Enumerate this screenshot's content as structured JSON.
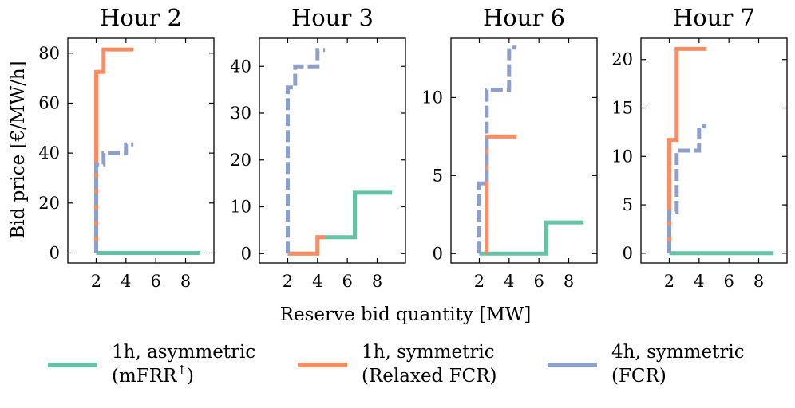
{
  "chart_data": {
    "type": "line",
    "xlabel": "Reserve bid quantity [MW]",
    "ylabel": "Bid price [€/MW/h]",
    "colors": {
      "asym": "#66c2a5",
      "relaxed": "#fc8d62",
      "fcr": "#8da0cb"
    },
    "legend": [
      {
        "key": "asym",
        "line1": "1h, asymmetric",
        "line2": "(mFRR",
        "sup": "↑",
        "close": ")"
      },
      {
        "key": "relaxed",
        "line1": "1h, symmetric",
        "line2": "(Relaxed FCR)"
      },
      {
        "key": "fcr",
        "line1": "4h, symmetric",
        "line2": "(FCR)"
      }
    ],
    "panels": [
      {
        "title": "Hour 2",
        "xlim": [
          0.1,
          9.9
        ],
        "ylim": [
          -4,
          86
        ],
        "xticks": [
          2,
          4,
          6,
          8
        ],
        "yticks": [
          0,
          20,
          40,
          60,
          80
        ],
        "series": [
          {
            "key": "asym",
            "x": [
              2,
              9
            ],
            "y": [
              0,
              0
            ]
          },
          {
            "key": "relaxed",
            "x": [
              2,
              2,
              2.5,
              2.5,
              4.5
            ],
            "y": [
              0,
              72.5,
              72.5,
              81.5,
              81.5
            ]
          },
          {
            "key": "fcr",
            "x": [
              2,
              2,
              2.5,
              2.5,
              4,
              4,
              4.5
            ],
            "y": [
              0,
              35.5,
              35.5,
              40,
              40,
              43.5,
              43.5
            ]
          }
        ]
      },
      {
        "title": "Hour 3",
        "xlim": [
          0.1,
          9.9
        ],
        "ylim": [
          -2,
          46
        ],
        "xticks": [
          2,
          4,
          6,
          8
        ],
        "yticks": [
          0,
          10,
          20,
          30,
          40
        ],
        "series": [
          {
            "key": "asym",
            "x": [
              2,
              4,
              4,
              6.5,
              6.5,
              9
            ],
            "y": [
              0,
              0,
              3.5,
              3.5,
              13,
              13
            ]
          },
          {
            "key": "relaxed",
            "x": [
              2,
              4,
              4,
              4.5
            ],
            "y": [
              0,
              0,
              3.5,
              3.5
            ]
          },
          {
            "key": "fcr",
            "x": [
              2,
              2,
              2.5,
              2.5,
              4,
              4,
              4.5
            ],
            "y": [
              0,
              35.5,
              35.5,
              40,
              40,
              43.5,
              43.5
            ]
          }
        ]
      },
      {
        "title": "Hour 6",
        "xlim": [
          0.1,
          9.9
        ],
        "ylim": [
          -0.6,
          13.8
        ],
        "xticks": [
          2,
          4,
          6,
          8
        ],
        "yticks": [
          0,
          5,
          10
        ],
        "series": [
          {
            "key": "asym",
            "x": [
              2,
              6.5,
              6.5,
              9
            ],
            "y": [
              0,
              0,
              2,
              2
            ]
          },
          {
            "key": "relaxed",
            "x": [
              2.5,
              2.5,
              4.5
            ],
            "y": [
              0,
              7.5,
              7.5
            ]
          },
          {
            "key": "fcr",
            "x": [
              2,
              2,
              2.5,
              2.5,
              4,
              4,
              4.5
            ],
            "y": [
              0,
              4.5,
              4.5,
              10.5,
              10.5,
              13.2,
              13.2
            ]
          }
        ]
      },
      {
        "title": "Hour 7",
        "xlim": [
          0.1,
          9.9
        ],
        "ylim": [
          -1,
          22.2
        ],
        "xticks": [
          2,
          4,
          6,
          8
        ],
        "yticks": [
          0,
          5,
          10,
          15,
          20
        ],
        "series": [
          {
            "key": "asym",
            "x": [
              2,
              9
            ],
            "y": [
              0,
              0
            ]
          },
          {
            "key": "relaxed",
            "x": [
              2,
              2,
              2.5,
              2.5,
              4.5
            ],
            "y": [
              0,
              11.7,
              11.7,
              21.1,
              21.1
            ]
          },
          {
            "key": "fcr",
            "x": [
              2,
              2,
              2.5,
              2.5,
              4,
              4,
              4.5
            ],
            "y": [
              0,
              4.3,
              4.3,
              10.6,
              10.6,
              13.1,
              13.1
            ]
          }
        ]
      }
    ]
  }
}
